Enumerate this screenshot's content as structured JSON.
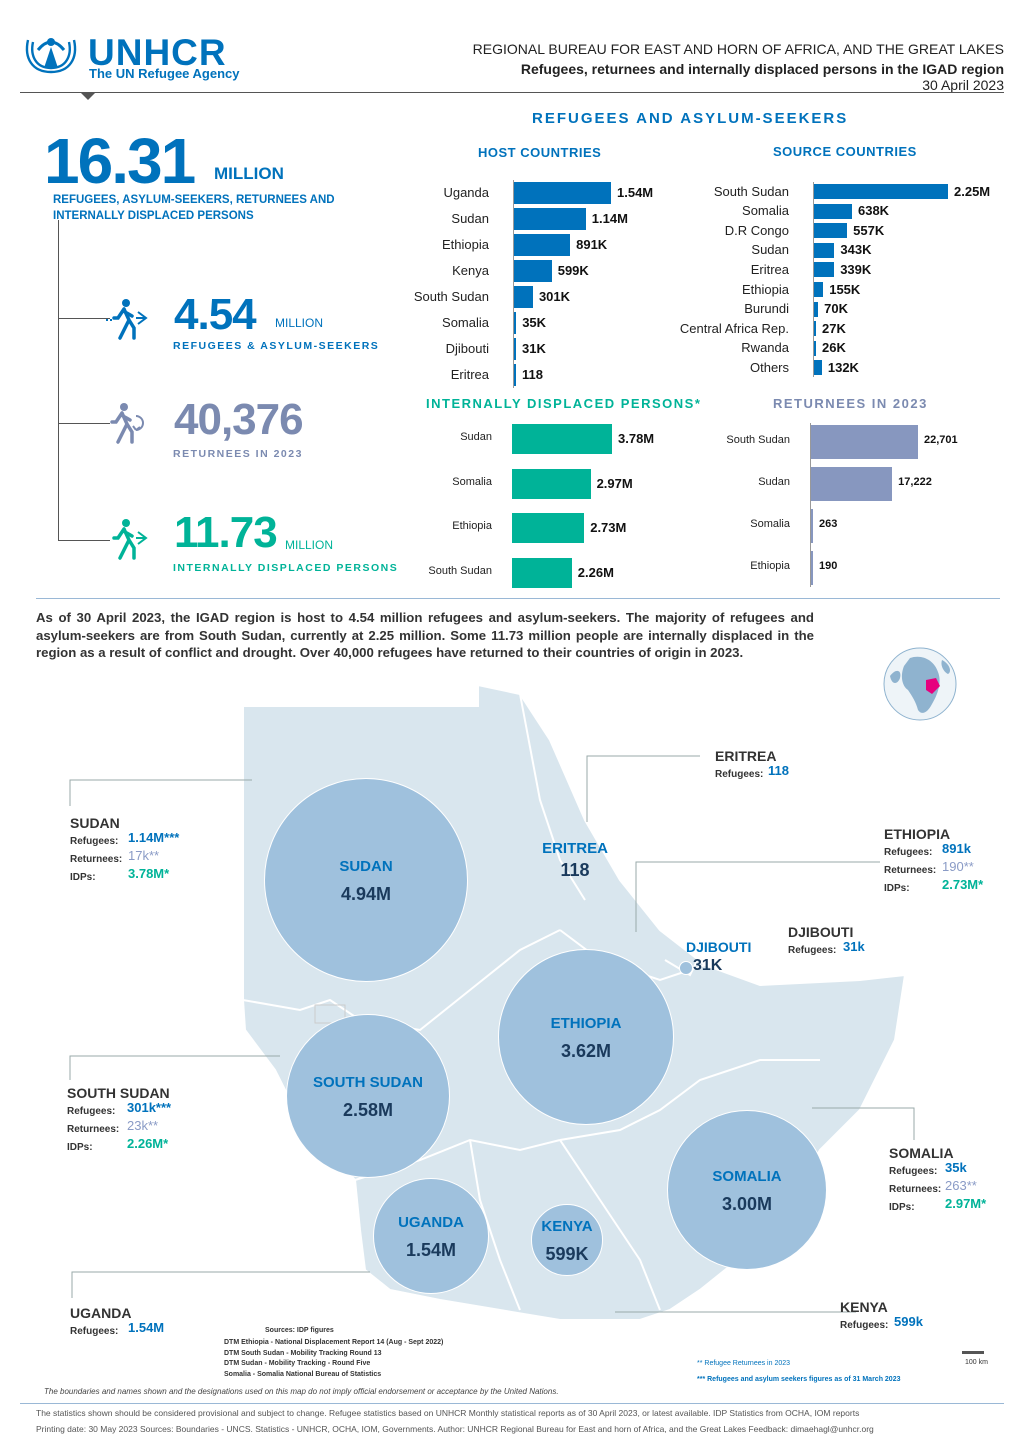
{
  "header": {
    "org_name": "UNHCR",
    "org_tagline": "The UN Refugee Agency",
    "bureau": "REGIONAL BUREAU FOR EAST AND HORN OF AFRICA, AND THE GREAT LAKES",
    "title": "Refugees, returnees and internally displaced persons in the IGAD region",
    "date": "30 April 2023"
  },
  "totals": {
    "total_value": "16.31",
    "total_unit": "MILLION",
    "total_desc": "REFUGEES, ASYLUM-SEEKERS, RETURNEES AND INTERNALLY DISPLACED PERSONS",
    "refugees_value": "4.54",
    "refugees_unit": "MILLION",
    "refugees_label": "REFUGEES & ASYLUM-SEEKERS",
    "returnees_value": "40,376",
    "returnees_label": "RETURNEES IN 2023",
    "idps_value": "11.73",
    "idps_unit": "MILLION",
    "idps_label": "INTERNALLY DISPLACED PERSONS"
  },
  "sections": {
    "refugees_title": "REFUGEES AND ASYLUM-SEEKERS",
    "host_title": "HOST COUNTRIES",
    "source_title": "SOURCE COUNTRIES",
    "idp_title": "INTERNALLY DISPLACED PERSONS*",
    "returnees_title": "RETURNEES IN 2023"
  },
  "chart_data": [
    {
      "type": "bar",
      "title": "HOST COUNTRIES",
      "categories": [
        "Uganda",
        "Sudan",
        "Ethiopia",
        "Kenya",
        "South Sudan",
        "Somalia",
        "Djibouti",
        "Eritrea"
      ],
      "values": [
        1540000,
        1140000,
        891000,
        599000,
        301000,
        35000,
        31000,
        118
      ],
      "labels": [
        "1.54M",
        "1.14M",
        "891K",
        "599K",
        "301K",
        "35K",
        "31K",
        "118"
      ],
      "color": "#0072bc"
    },
    {
      "type": "bar",
      "title": "SOURCE COUNTRIES",
      "categories": [
        "South Sudan",
        "Somalia",
        "D.R Congo",
        "Sudan",
        "Eritrea",
        "Ethiopia",
        "Burundi",
        "Central Africa Rep.",
        "Rwanda",
        "Others"
      ],
      "values": [
        2250000,
        638000,
        557000,
        343000,
        339000,
        155000,
        70000,
        27000,
        26000,
        132000
      ],
      "labels": [
        "2.25M",
        "638K",
        "557K",
        "343K",
        "339K",
        "155K",
        "70K",
        "27K",
        "26K",
        "132K"
      ],
      "color": "#0072bc"
    },
    {
      "type": "bar",
      "title": "INTERNALLY DISPLACED PERSONS*",
      "categories": [
        "Sudan",
        "Somalia",
        "Ethiopia",
        "South Sudan"
      ],
      "values": [
        3780000,
        2970000,
        2730000,
        2260000
      ],
      "labels": [
        "3.78M",
        "2.97M",
        "2.73M",
        "2.26M"
      ],
      "color": "#00b398"
    },
    {
      "type": "bar",
      "title": "RETURNEES IN 2023",
      "categories": [
        "South Sudan",
        "Sudan",
        "Somalia",
        "Ethiopia"
      ],
      "values": [
        22701,
        17222,
        263,
        190
      ],
      "labels": [
        "22,701",
        "17,222",
        "263",
        "190"
      ],
      "color": "#8797bf"
    }
  ],
  "summary": "As of 30 April 2023, the IGAD region is host to 4.54 million refugees and asylum-seekers. The majority of refugees and asylum-seekers are from South Sudan, currently at 2.25 million. Some 11.73 million people are internally displaced in the region as a result of conflict and drought. Over 40,000 refugees have returned to their countries of origin in 2023.",
  "map": {
    "circles": [
      {
        "name": "SUDAN",
        "value": "4.94M"
      },
      {
        "name": "SOUTH SUDAN",
        "value": "2.58M"
      },
      {
        "name": "ETHIOPIA",
        "value": "3.62M"
      },
      {
        "name": "SOMALIA",
        "value": "3.00M"
      },
      {
        "name": "UGANDA",
        "value": "1.54M"
      },
      {
        "name": "KENYA",
        "value": "599K"
      },
      {
        "name": "ERITREA",
        "value": "118"
      },
      {
        "name": "DJIBOUTI",
        "value": "31K"
      }
    ],
    "labels": {
      "refugees": "Refugees:",
      "returnees": "Returnees:",
      "idps": "IDPs:"
    },
    "callouts": {
      "sudan": {
        "name": "SUDAN",
        "refugees": "1.14M***",
        "returnees": "17k**",
        "idps": "3.78M*"
      },
      "south_sudan": {
        "name": "SOUTH SUDAN",
        "refugees": "301k***",
        "returnees": "23k**",
        "idps": "2.26M*"
      },
      "uganda": {
        "name": "UGANDA",
        "refugees": "1.54M"
      },
      "eritrea": {
        "name": "ERITREA",
        "refugees": "118"
      },
      "ethiopia": {
        "name": "ETHIOPIA",
        "refugees": "891k",
        "returnees": "190**",
        "idps": "2.73M*"
      },
      "djibouti": {
        "name": "DJIBOUTI",
        "refugees": "31k"
      },
      "somalia": {
        "name": "SOMALIA",
        "refugees": "35k",
        "returnees": "263**",
        "idps": "2.97M*"
      },
      "kenya": {
        "name": "KENYA",
        "refugees": "599k"
      }
    },
    "sources_title": "Sources: IDP figures",
    "sources": [
      "DTM Ethiopia - National Displacement Report 14 (Aug - Sept 2022)",
      "DTM South Sudan - Mobility Tracking Round 13",
      "DTM Sudan - Mobility Tracking - Round Five",
      "Somalia - Somalia National Bureau of Statistics"
    ],
    "note1": "** Refugee Returnees in 2023",
    "note2": "*** Refugees and asylum seekers figures as of 31 March 2023",
    "scale": "100 km",
    "disclaimer": "The boundaries and names shown and the designations used on this map do not imply official endorsement or acceptance by the United Nations."
  },
  "footer": {
    "line1": "The statistics shown should be considered provisional and subject to change. Refugee statistics based on UNHCR Monthly statistical reports as of 30 April 2023, or latest available. IDP Statistics from OCHA, IOM reports",
    "line2": "Printing date: 30 May 2023  Sources:  Boundaries - UNCS. Statistics - UNHCR, OCHA, IOM, Governments.   Author: UNHCR Regional Bureau for East and horn of Africa, and the Great Lakes  Feedback: dimaehagl@unhcr.org"
  }
}
